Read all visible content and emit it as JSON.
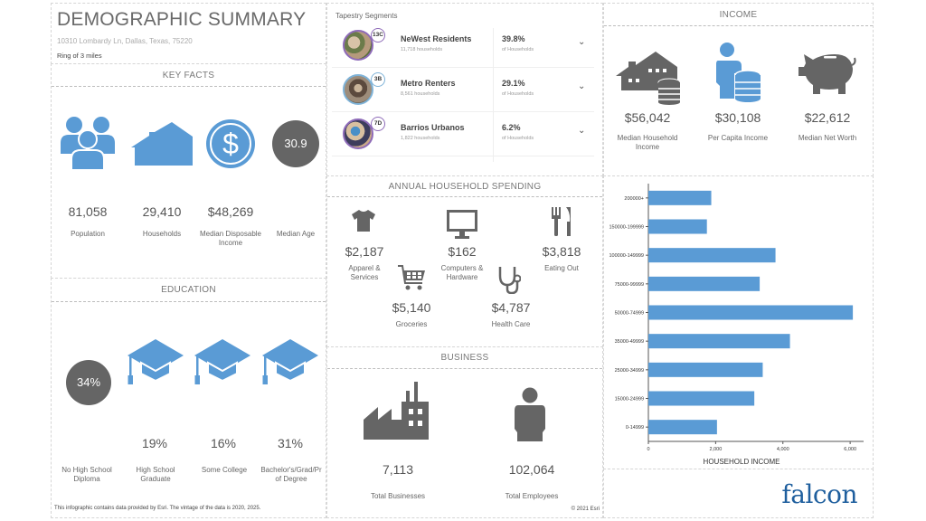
{
  "header": {
    "title": "DEMOGRAPHIC SUMMARY",
    "address": "10310 Lombardy Ln, Dallas, Texas, 75220",
    "ring": "Ring of 3 miles"
  },
  "key_facts": {
    "heading": "KEY FACTS",
    "items": [
      {
        "icon": "people-icon",
        "value": "81,058",
        "label": "Population"
      },
      {
        "icon": "house-icon",
        "value": "29,410",
        "label": "Households"
      },
      {
        "icon": "dollar-coin-icon",
        "value": "$48,269",
        "label": "Median Disposable Income"
      },
      {
        "icon": "age-circle",
        "value": "30.9",
        "label": "Median Age"
      }
    ]
  },
  "education": {
    "heading": "EDUCATION",
    "items": [
      {
        "value": "34%",
        "label": "No High School Diploma"
      },
      {
        "value": "19%",
        "label": "High School Graduate"
      },
      {
        "value": "16%",
        "label": "Some College"
      },
      {
        "value": "31%",
        "label": "Bachelor's/Grad/Prof Degree"
      }
    ],
    "bachelor_label_line1": "Bachelor's/Grad/Pr",
    "bachelor_label_line2": "of Degree"
  },
  "footer_note": "This infographic contains data provided by Esri. The vintage of the data is 2020, 2025.",
  "tapestry": {
    "title": "Tapestry Segments",
    "segments": [
      {
        "code": "13C",
        "name": "NeWest Residents",
        "households": "11,718 households",
        "percent": "39.8%",
        "of_label": "of Households",
        "ring_color": "#8e6bb8"
      },
      {
        "code": "3B",
        "name": "Metro Renters",
        "households": "8,561 households",
        "percent": "29.1%",
        "of_label": "of Households",
        "ring_color": "#7fb3d8"
      },
      {
        "code": "7D",
        "name": "Barrios Urbanos",
        "households": "1,822 households",
        "percent": "6.2%",
        "of_label": "of Households",
        "ring_color": "#8e6bb8"
      }
    ]
  },
  "spending": {
    "heading": "ANNUAL HOUSEHOLD SPENDING",
    "items": [
      {
        "icon": "shirt-icon",
        "value": "$2,187",
        "label_line1": "Apparel &",
        "label_line2": "Services"
      },
      {
        "icon": "monitor-icon",
        "value": "$162",
        "label_line1": "Computers &",
        "label_line2": "Hardware"
      },
      {
        "icon": "fork-knife-icon",
        "value": "$3,818",
        "label_line1": "Eating Out",
        "label_line2": ""
      },
      {
        "icon": "cart-icon",
        "value": "$5,140",
        "label_line1": "Groceries",
        "label_line2": ""
      },
      {
        "icon": "stethoscope-icon",
        "value": "$4,787",
        "label_line1": "Health Care",
        "label_line2": ""
      }
    ]
  },
  "business": {
    "heading": "BUSINESS",
    "items": [
      {
        "icon": "factory-icon",
        "value": "7,113",
        "label": "Total Businesses"
      },
      {
        "icon": "person-icon",
        "value": "102,064",
        "label": "Total Employees"
      }
    ],
    "copyright": "© 2021 Esri"
  },
  "income": {
    "heading": "INCOME",
    "items": [
      {
        "icon": "house-coins-icon",
        "value": "$56,042",
        "label_line1": "Median Household",
        "label_line2": "Income"
      },
      {
        "icon": "person-coins-icon",
        "value": "$30,108",
        "label_line1": "Per Capita Income",
        "label_line2": ""
      },
      {
        "icon": "piggy-bank-icon",
        "value": "$22,612",
        "label_line1": "Median Net Worth",
        "label_line2": ""
      }
    ]
  },
  "colors": {
    "accent_blue": "#5a9bd5",
    "dark_grey": "#656565",
    "brand": "#1f5f9e"
  },
  "brand": {
    "logo_text": "falcon"
  },
  "chart_data": {
    "type": "bar",
    "orientation": "horizontal",
    "title": "",
    "xlabel": "HOUSEHOLD INCOME",
    "ylabel": "",
    "categories": [
      "200000+",
      "150000-199999",
      "100000-149999",
      "75000-99999",
      "50000-74999",
      "35000-49999",
      "25000-34999",
      "15000-24999",
      "0-14999"
    ],
    "values": [
      1870,
      1740,
      3780,
      3310,
      6080,
      4210,
      3400,
      3150,
      2040
    ],
    "xlim": [
      0,
      6400
    ],
    "xticks": [
      0,
      2000,
      4000,
      6000
    ],
    "xtick_labels": [
      "0",
      "2,000",
      "4,000",
      "6,000"
    ],
    "grid": false,
    "bar_color": "#5a9bd5"
  }
}
